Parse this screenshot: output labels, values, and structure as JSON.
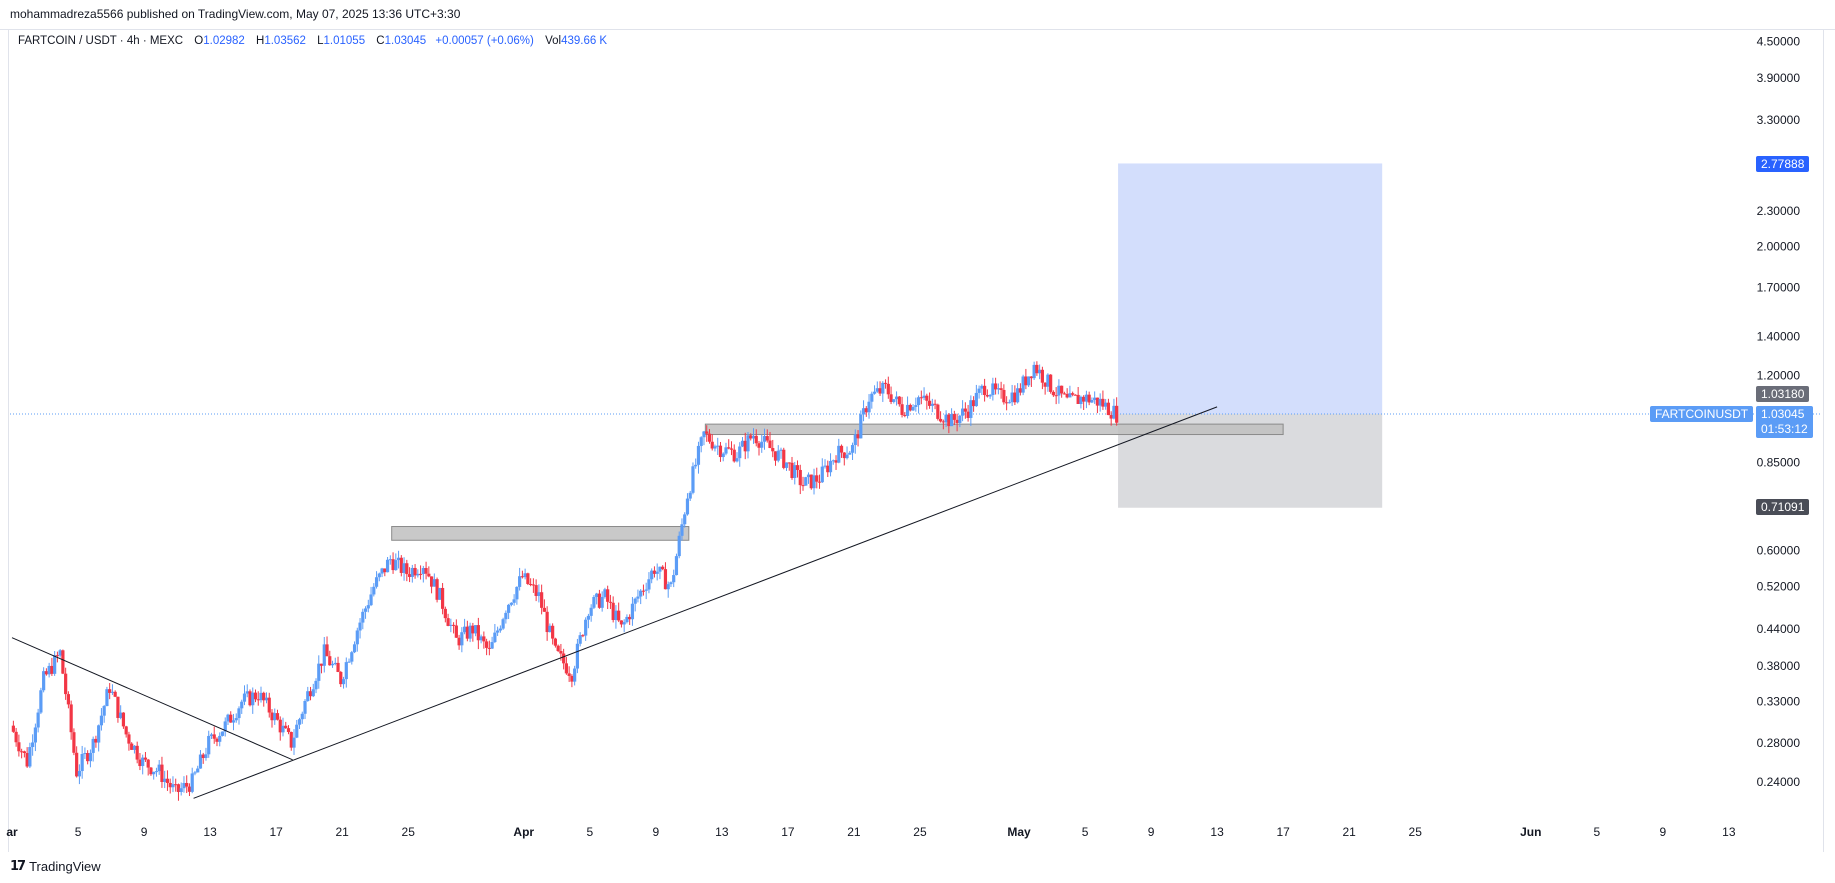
{
  "header": {
    "published": "mohammadreza5566 published on TradingView.com, May 07, 2025 13:36 UTC+3:30"
  },
  "legend": {
    "symbol": "FARTCOIN / USDT · 4h · MEXC",
    "open_label": "O",
    "open": "1.02982",
    "high_label": "H",
    "high": "1.03562",
    "low_label": "L",
    "low": "1.01055",
    "close_label": "C",
    "close": "1.03045",
    "change": "+0.00057 (+0.06%)",
    "vol_label": "Vol",
    "vol": "439.66 K"
  },
  "branding": {
    "name": "TradingView",
    "icon": "tradingview-logo-icon"
  },
  "price_labels": {
    "target": "2.77888",
    "stop": "0.71091",
    "last_high": "1.03180",
    "symbol_tag": "FARTCOINUSDT",
    "current": "1.03045",
    "countdown": "01:53:12"
  },
  "colors": {
    "up": "#5b9cf6",
    "down": "#f23645",
    "target_zone": "#c8d6fb",
    "stop_zone": "#d6d7da",
    "support_zone": "#c0c0c0",
    "accent": "#2962ff"
  },
  "chart_data": {
    "type": "candlestick",
    "symbol": "FARTCOIN / USDT",
    "interval": "4h",
    "scale": "log",
    "y_ticks": [
      "4.50000",
      "3.90000",
      "3.30000",
      "2.30000",
      "2.00000",
      "1.70000",
      "1.40000",
      "1.20000",
      "0.85000",
      "0.60000",
      "0.52000",
      "0.44000",
      "0.38000",
      "0.33000",
      "0.28000",
      "0.24000"
    ],
    "x_ticks": [
      {
        "label": "ar",
        "date": "2025-03-01"
      },
      {
        "label": "5",
        "date": "2025-03-05"
      },
      {
        "label": "9",
        "date": "2025-03-09"
      },
      {
        "label": "13",
        "date": "2025-03-13"
      },
      {
        "label": "17",
        "date": "2025-03-17"
      },
      {
        "label": "21",
        "date": "2025-03-21"
      },
      {
        "label": "25",
        "date": "2025-03-25"
      },
      {
        "label": "Apr",
        "date": "2025-04-01"
      },
      {
        "label": "5",
        "date": "2025-04-05"
      },
      {
        "label": "9",
        "date": "2025-04-09"
      },
      {
        "label": "13",
        "date": "2025-04-13"
      },
      {
        "label": "17",
        "date": "2025-04-17"
      },
      {
        "label": "21",
        "date": "2025-04-21"
      },
      {
        "label": "25",
        "date": "2025-04-25"
      },
      {
        "label": "May",
        "date": "2025-05-01"
      },
      {
        "label": "5",
        "date": "2025-05-05"
      },
      {
        "label": "9",
        "date": "2025-05-09"
      },
      {
        "label": "13",
        "date": "2025-05-13"
      },
      {
        "label": "17",
        "date": "2025-05-17"
      },
      {
        "label": "21",
        "date": "2025-05-21"
      },
      {
        "label": "25",
        "date": "2025-05-25"
      },
      {
        "label": "Jun",
        "date": "2025-06-01"
      },
      {
        "label": "5",
        "date": "2025-06-05"
      },
      {
        "label": "9",
        "date": "2025-06-09"
      },
      {
        "label": "13",
        "date": "2025-06-13"
      }
    ],
    "close_path": [
      {
        "date": "2025-03-01",
        "close": 0.3
      },
      {
        "date": "2025-03-02",
        "close": 0.26
      },
      {
        "date": "2025-03-03",
        "close": 0.36
      },
      {
        "date": "2025-03-04",
        "close": 0.4
      },
      {
        "date": "2025-03-05",
        "close": 0.25
      },
      {
        "date": "2025-03-06",
        "close": 0.28
      },
      {
        "date": "2025-03-07",
        "close": 0.35
      },
      {
        "date": "2025-03-08",
        "close": 0.29
      },
      {
        "date": "2025-03-09",
        "close": 0.26
      },
      {
        "date": "2025-03-10",
        "close": 0.25
      },
      {
        "date": "2025-03-11",
        "close": 0.23
      },
      {
        "date": "2025-03-12",
        "close": 0.24
      },
      {
        "date": "2025-03-13",
        "close": 0.28
      },
      {
        "date": "2025-03-14",
        "close": 0.3
      },
      {
        "date": "2025-03-15",
        "close": 0.33
      },
      {
        "date": "2025-03-16",
        "close": 0.34
      },
      {
        "date": "2025-03-17",
        "close": 0.31
      },
      {
        "date": "2025-03-18",
        "close": 0.28
      },
      {
        "date": "2025-03-19",
        "close": 0.34
      },
      {
        "date": "2025-03-20",
        "close": 0.4
      },
      {
        "date": "2025-03-21",
        "close": 0.36
      },
      {
        "date": "2025-03-22",
        "close": 0.44
      },
      {
        "date": "2025-03-23",
        "close": 0.52
      },
      {
        "date": "2025-03-24",
        "close": 0.58
      },
      {
        "date": "2025-03-25",
        "close": 0.55
      },
      {
        "date": "2025-03-26",
        "close": 0.57
      },
      {
        "date": "2025-03-27",
        "close": 0.5
      },
      {
        "date": "2025-03-28",
        "close": 0.42
      },
      {
        "date": "2025-03-29",
        "close": 0.44
      },
      {
        "date": "2025-03-30",
        "close": 0.4
      },
      {
        "date": "2025-03-31",
        "close": 0.48
      },
      {
        "date": "2025-04-01",
        "close": 0.54
      },
      {
        "date": "2025-04-02",
        "close": 0.5
      },
      {
        "date": "2025-04-03",
        "close": 0.4
      },
      {
        "date": "2025-04-04",
        "close": 0.37
      },
      {
        "date": "2025-04-05",
        "close": 0.48
      },
      {
        "date": "2025-04-06",
        "close": 0.5
      },
      {
        "date": "2025-04-07",
        "close": 0.44
      },
      {
        "date": "2025-04-08",
        "close": 0.5
      },
      {
        "date": "2025-04-09",
        "close": 0.56
      },
      {
        "date": "2025-04-10",
        "close": 0.52
      },
      {
        "date": "2025-04-11",
        "close": 0.75
      },
      {
        "date": "2025-04-12",
        "close": 0.95
      },
      {
        "date": "2025-04-13",
        "close": 0.9
      },
      {
        "date": "2025-04-14",
        "close": 0.88
      },
      {
        "date": "2025-04-15",
        "close": 0.95
      },
      {
        "date": "2025-04-16",
        "close": 0.9
      },
      {
        "date": "2025-04-17",
        "close": 0.85
      },
      {
        "date": "2025-04-18",
        "close": 0.78
      },
      {
        "date": "2025-04-19",
        "close": 0.8
      },
      {
        "date": "2025-04-20",
        "close": 0.88
      },
      {
        "date": "2025-04-21",
        "close": 0.9
      },
      {
        "date": "2025-04-22",
        "close": 1.1
      },
      {
        "date": "2025-04-23",
        "close": 1.14
      },
      {
        "date": "2025-04-24",
        "close": 1.05
      },
      {
        "date": "2025-04-25",
        "close": 1.1
      },
      {
        "date": "2025-04-26",
        "close": 1.05
      },
      {
        "date": "2025-04-27",
        "close": 1.0
      },
      {
        "date": "2025-04-28",
        "close": 1.05
      },
      {
        "date": "2025-04-29",
        "close": 1.15
      },
      {
        "date": "2025-04-30",
        "close": 1.1
      },
      {
        "date": "2025-05-01",
        "close": 1.12
      },
      {
        "date": "2025-05-02",
        "close": 1.25
      },
      {
        "date": "2025-05-03",
        "close": 1.15
      },
      {
        "date": "2025-05-04",
        "close": 1.08
      },
      {
        "date": "2025-05-05",
        "close": 1.1
      },
      {
        "date": "2025-05-06",
        "close": 1.08
      },
      {
        "date": "2025-05-07",
        "close": 1.03
      }
    ],
    "position": {
      "entry": 1.03045,
      "target": 2.77888,
      "stop": 0.71091,
      "start": "2025-05-07",
      "end": "2025-05-23"
    },
    "support_zones": [
      {
        "price_low": 0.95,
        "price_high": 0.99,
        "start": "2025-04-12",
        "end": "2025-05-17"
      },
      {
        "price_low": 0.625,
        "price_high": 0.66,
        "start": "2025-03-24",
        "end": "2025-04-11"
      }
    ],
    "trendlines": [
      {
        "from": {
          "date": "2025-03-12",
          "price": 0.225
        },
        "to": {
          "date": "2025-05-13",
          "price": 1.06
        }
      },
      {
        "from": {
          "date": "2025-03-01",
          "price": 0.425
        },
        "to": {
          "date": "2025-03-18",
          "price": 0.262
        }
      }
    ]
  }
}
